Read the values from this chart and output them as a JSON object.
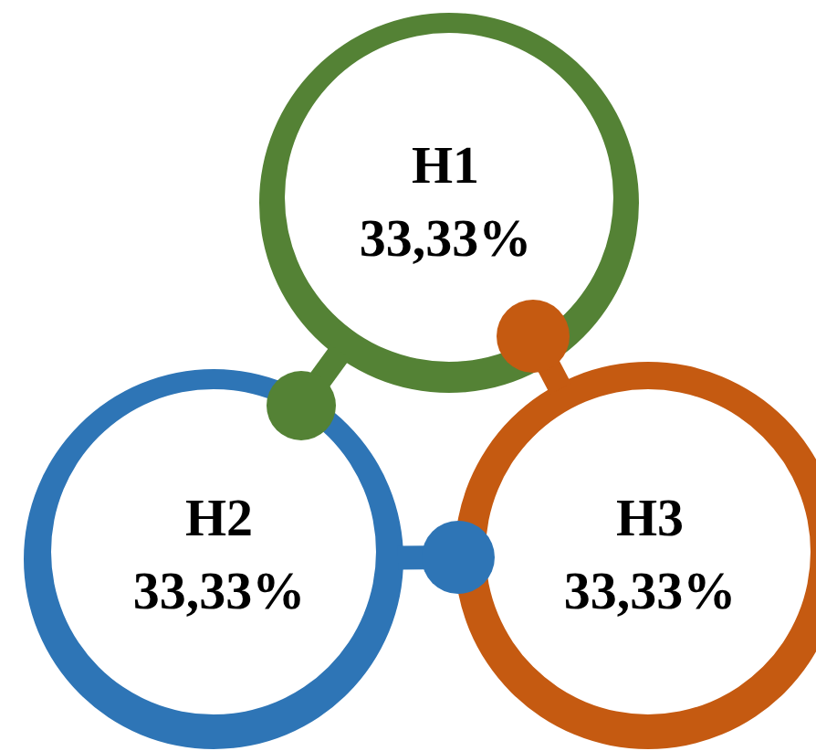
{
  "chart_data": {
    "type": "other",
    "categories": [
      "H1",
      "H2",
      "H3"
    ],
    "values": [
      33.33,
      33.33,
      33.33
    ],
    "value_labels": [
      "33,33%",
      "33,33%",
      "33,33%"
    ],
    "colors": [
      "#548235",
      "#2e75b6",
      "#c55a11"
    ]
  }
}
